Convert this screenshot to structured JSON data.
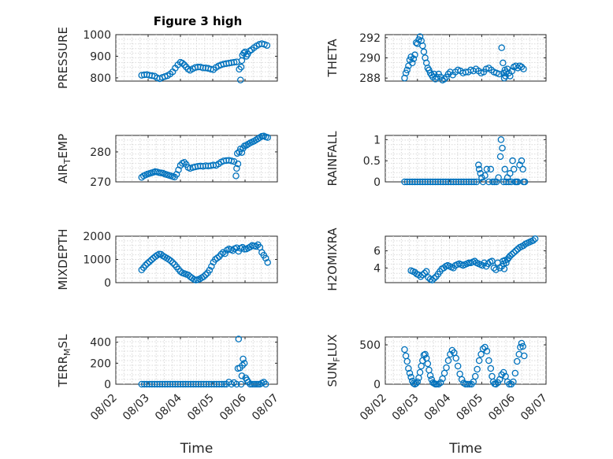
{
  "figure": {
    "title": "Figure 3 high",
    "marker_color": "#0072bd",
    "xlabel": "Time",
    "xticklabels": [
      "08/02",
      "08/03",
      "08/04",
      "08/05",
      "08/06",
      "08/07"
    ]
  },
  "chart_data": [
    {
      "type": "scatter",
      "ylabel": "PRESSURE",
      "xlim": [
        0,
        5
      ],
      "ylim": [
        785,
        1000
      ],
      "yticks": [
        800,
        900,
        1000
      ],
      "yticklabels": [
        "800",
        "900",
        "1000"
      ],
      "grid": true,
      "x": [
        0.8,
        0.88,
        0.96,
        1.04,
        1.12,
        1.2,
        1.28,
        1.36,
        1.44,
        1.52,
        1.6,
        1.68,
        1.76,
        1.84,
        1.92,
        2.0,
        2.06,
        2.12,
        2.18,
        2.24,
        2.3,
        2.38,
        2.46,
        2.54,
        2.62,
        2.7,
        2.78,
        2.86,
        2.94,
        3.02,
        3.1,
        3.18,
        3.26,
        3.34,
        3.42,
        3.5,
        3.58,
        3.66,
        3.74,
        3.82,
        3.86,
        3.88,
        3.9,
        3.92,
        3.96,
        4.0,
        4.04,
        4.08,
        4.14,
        4.2,
        4.28,
        4.36,
        4.44,
        4.52,
        4.6,
        4.68
      ],
      "y": [
        812,
        814,
        815,
        812,
        810,
        808,
        800,
        796,
        802,
        806,
        810,
        818,
        828,
        845,
        860,
        872,
        868,
        860,
        850,
        840,
        835,
        842,
        848,
        850,
        850,
        846,
        846,
        844,
        840,
        838,
        848,
        855,
        860,
        864,
        866,
        868,
        870,
        872,
        874,
        840,
        790,
        850,
        880,
        905,
        915,
        920,
        900,
        910,
        924,
        930,
        940,
        948,
        955,
        958,
        955,
        950
      ]
    },
    {
      "type": "scatter",
      "ylabel": "THETA",
      "xlim": [
        0,
        5
      ],
      "ylim": [
        287.7,
        292.3
      ],
      "yticks": [
        288,
        290,
        292
      ],
      "yticklabels": [
        "288",
        "290",
        "292"
      ],
      "grid": true,
      "x": [
        0.6,
        0.64,
        0.68,
        0.72,
        0.76,
        0.8,
        0.84,
        0.88,
        0.92,
        0.96,
        1.0,
        1.04,
        1.08,
        1.12,
        1.16,
        1.2,
        1.24,
        1.28,
        1.32,
        1.36,
        1.4,
        1.44,
        1.48,
        1.52,
        1.56,
        1.6,
        1.66,
        1.72,
        1.78,
        1.84,
        1.9,
        1.96,
        2.02,
        2.1,
        2.18,
        2.26,
        2.34,
        2.42,
        2.5,
        2.58,
        2.66,
        2.74,
        2.82,
        2.9,
        2.98,
        3.06,
        3.14,
        3.22,
        3.3,
        3.38,
        3.46,
        3.54,
        3.62,
        3.66,
        3.68,
        3.7,
        3.72,
        3.74,
        3.76,
        3.8,
        3.84,
        3.88,
        3.94,
        4.0,
        4.06,
        4.12,
        4.18,
        4.24,
        4.3
      ],
      "y": [
        288,
        288.5,
        288.8,
        289.2,
        289.8,
        290.1,
        289.5,
        289.9,
        290.3,
        291.5,
        291.4,
        291.8,
        292.1,
        291.7,
        291.2,
        290.6,
        290,
        289.5,
        289,
        288.8,
        288.5,
        288.3,
        288.1,
        288.4,
        287.9,
        288.1,
        288.4,
        288.1,
        287.8,
        287.9,
        288.1,
        288.4,
        288.6,
        288.3,
        288.6,
        288.8,
        288.7,
        288.5,
        288.6,
        288.6,
        288.8,
        288.7,
        288.9,
        288.7,
        288.5,
        288.6,
        288.9,
        289.0,
        288.8,
        288.6,
        288.5,
        288.4,
        291.0,
        289.5,
        288.5,
        288.0,
        288.8,
        288.2,
        288.6,
        288.9,
        288.5,
        288.2,
        288.7,
        289.1,
        289.2,
        289.0,
        289.2,
        289.1,
        288.9
      ]
    },
    {
      "type": "scatter",
      "ylabel": "AIR_TEMP",
      "xlim": [
        0,
        5
      ],
      "ylim": [
        270,
        285.5
      ],
      "yticks": [
        270,
        280
      ],
      "yticklabels": [
        "270",
        "280"
      ],
      "grid": true,
      "x": [
        0.8,
        0.86,
        0.92,
        0.98,
        1.04,
        1.1,
        1.16,
        1.22,
        1.28,
        1.34,
        1.4,
        1.46,
        1.52,
        1.58,
        1.64,
        1.7,
        1.76,
        1.82,
        1.88,
        1.94,
        2.0,
        2.06,
        2.12,
        2.18,
        2.24,
        2.3,
        2.38,
        2.46,
        2.54,
        2.62,
        2.7,
        2.78,
        2.86,
        2.94,
        3.02,
        3.1,
        3.18,
        3.26,
        3.34,
        3.42,
        3.5,
        3.58,
        3.66,
        3.72,
        3.74,
        3.76,
        3.78,
        3.82,
        3.86,
        3.9,
        3.94,
        3.98,
        4.04,
        4.1,
        4.16,
        4.22,
        4.28,
        4.34,
        4.4,
        4.46,
        4.52,
        4.58,
        4.64,
        4.7
      ],
      "y": [
        271.5,
        272,
        272.3,
        272.6,
        272.8,
        273,
        273.2,
        273.4,
        273.3,
        273.1,
        273,
        272.9,
        272.6,
        272.4,
        272.2,
        272,
        271.8,
        271.6,
        272.5,
        274,
        275.5,
        276.2,
        276.5,
        275.8,
        274.8,
        274.5,
        274.8,
        275,
        275.2,
        275.3,
        275.2,
        275.4,
        275.3,
        275.4,
        275.6,
        275.5,
        276,
        276.6,
        277,
        277.1,
        277.2,
        277.0,
        276.8,
        272,
        274.5,
        279.5,
        276,
        280,
        281,
        279.8,
        281.2,
        282,
        282.2,
        282.6,
        283,
        283.3,
        283.6,
        284,
        284.4,
        284.8,
        285.2,
        285.3,
        285.0,
        284.8
      ]
    },
    {
      "type": "scatter",
      "ylabel": "RAINFALL",
      "xlim": [
        0,
        5
      ],
      "ylim": [
        0,
        1.1
      ],
      "yticks": [
        0,
        0.5,
        1
      ],
      "yticklabels": [
        "0",
        "0.5",
        "1"
      ],
      "grid": true,
      "x": [
        0.6,
        0.68,
        0.76,
        0.84,
        0.92,
        1.0,
        1.08,
        1.16,
        1.24,
        1.32,
        1.4,
        1.48,
        1.56,
        1.64,
        1.72,
        1.8,
        1.88,
        1.96,
        2.04,
        2.12,
        2.2,
        2.28,
        2.36,
        2.44,
        2.52,
        2.6,
        2.68,
        2.76,
        2.84,
        2.9,
        2.92,
        2.96,
        3.0,
        3.04,
        3.1,
        3.16,
        3.22,
        3.28,
        3.34,
        3.4,
        3.46,
        3.52,
        3.58,
        3.6,
        3.64,
        3.68,
        3.72,
        3.76,
        3.8,
        3.84,
        3.88,
        3.92,
        3.96,
        4.0,
        4.04,
        4.08,
        4.12,
        4.18,
        4.24,
        4.28,
        4.3,
        4.34
      ],
      "y": [
        0,
        0,
        0,
        0,
        0,
        0,
        0,
        0,
        0,
        0,
        0,
        0,
        0,
        0,
        0,
        0,
        0,
        0,
        0,
        0,
        0,
        0,
        0,
        0,
        0,
        0,
        0,
        0,
        0,
        0.4,
        0.3,
        0.2,
        0.1,
        0,
        0.15,
        0.3,
        0,
        0.3,
        0,
        0,
        0,
        0.1,
        0.6,
        1.0,
        0.8,
        0,
        0.3,
        0,
        0.1,
        0,
        0.2,
        0,
        0.5,
        0.3,
        0,
        0,
        0,
        0.4,
        0.5,
        0.3,
        0,
        0
      ]
    },
    {
      "type": "scatter",
      "ylabel": "MIXDEPTH",
      "xlim": [
        0,
        5
      ],
      "ylim": [
        0,
        2000
      ],
      "yticks": [
        0,
        1000,
        2000
      ],
      "yticklabels": [
        "0",
        "1000",
        "2000"
      ],
      "grid": true,
      "x": [
        0.8,
        0.86,
        0.92,
        0.98,
        1.04,
        1.1,
        1.16,
        1.22,
        1.28,
        1.34,
        1.4,
        1.46,
        1.52,
        1.58,
        1.64,
        1.7,
        1.76,
        1.82,
        1.88,
        1.94,
        2.0,
        2.06,
        2.12,
        2.18,
        2.24,
        2.3,
        2.36,
        2.42,
        2.48,
        2.54,
        2.6,
        2.66,
        2.72,
        2.78,
        2.84,
        2.9,
        2.96,
        3.02,
        3.08,
        3.14,
        3.2,
        3.26,
        3.32,
        3.38,
        3.44,
        3.5,
        3.56,
        3.62,
        3.68,
        3.74,
        3.8,
        3.86,
        3.92,
        3.98,
        4.04,
        4.1,
        4.16,
        4.22,
        4.28,
        4.34,
        4.4,
        4.46,
        4.52,
        4.58,
        4.64,
        4.7
      ],
      "y": [
        550,
        650,
        750,
        830,
        900,
        980,
        1050,
        1120,
        1180,
        1230,
        1220,
        1150,
        1100,
        1050,
        1000,
        940,
        860,
        780,
        680,
        580,
        480,
        420,
        390,
        360,
        330,
        260,
        200,
        140,
        110,
        130,
        160,
        210,
        260,
        340,
        420,
        540,
        700,
        880,
        1000,
        1060,
        1120,
        1220,
        1300,
        1250,
        1400,
        1450,
        1420,
        1380,
        1460,
        1500,
        1350,
        1480,
        1520,
        1440,
        1450,
        1490,
        1540,
        1600,
        1580,
        1560,
        1630,
        1520,
        1300,
        1180,
        1050,
        870
      ]
    },
    {
      "type": "scatter",
      "ylabel": "H2OMIXRA",
      "xlim": [
        0,
        5
      ],
      "ylim": [
        2.3,
        7.7
      ],
      "yticks": [
        4,
        6
      ],
      "yticklabels": [
        "4",
        "6"
      ],
      "grid": true,
      "x": [
        0.8,
        0.86,
        0.92,
        0.98,
        1.04,
        1.1,
        1.16,
        1.22,
        1.28,
        1.34,
        1.4,
        1.46,
        1.52,
        1.58,
        1.64,
        1.7,
        1.76,
        1.82,
        1.88,
        1.94,
        2.0,
        2.06,
        2.12,
        2.18,
        2.24,
        2.3,
        2.36,
        2.42,
        2.48,
        2.54,
        2.6,
        2.66,
        2.72,
        2.78,
        2.84,
        2.9,
        2.96,
        3.02,
        3.08,
        3.14,
        3.2,
        3.26,
        3.32,
        3.38,
        3.44,
        3.5,
        3.56,
        3.62,
        3.66,
        3.68,
        3.7,
        3.72,
        3.76,
        3.8,
        3.84,
        3.88,
        3.94,
        4.0,
        4.06,
        4.12,
        4.18,
        4.24,
        4.3,
        4.36,
        4.42,
        4.48,
        4.54,
        4.6,
        4.66
      ],
      "y": [
        3.7,
        3.6,
        3.5,
        3.3,
        3.2,
        3.0,
        3.2,
        3.4,
        3.6,
        2.9,
        2.7,
        2.6,
        2.8,
        3.0,
        3.3,
        3.6,
        3.9,
        4.0,
        4.2,
        4.3,
        4.2,
        4.1,
        4.0,
        4.3,
        4.4,
        4.5,
        4.4,
        4.3,
        4.4,
        4.5,
        4.6,
        4.6,
        4.7,
        4.8,
        4.6,
        4.5,
        4.4,
        4.3,
        4.6,
        4.2,
        4.5,
        4.7,
        4.8,
        4.0,
        3.8,
        4.6,
        4.0,
        4.2,
        4.8,
        4.5,
        3.9,
        4.9,
        4.6,
        5.0,
        5.2,
        5.4,
        5.6,
        5.8,
        6.0,
        6.2,
        6.4,
        6.5,
        6.6,
        6.8,
        6.9,
        7.0,
        7.1,
        7.2,
        7.4
      ]
    },
    {
      "type": "scatter",
      "ylabel": "TERR_MSL",
      "xlim": [
        0,
        5
      ],
      "ylim": [
        0,
        450
      ],
      "yticks": [
        0,
        200,
        400
      ],
      "yticklabels": [
        "0",
        "200",
        "400"
      ],
      "grid": true,
      "x": [
        0.8,
        0.88,
        0.96,
        1.04,
        1.12,
        1.2,
        1.28,
        1.36,
        1.44,
        1.52,
        1.6,
        1.68,
        1.76,
        1.84,
        1.92,
        2.0,
        2.08,
        2.16,
        2.24,
        2.32,
        2.4,
        2.48,
        2.56,
        2.64,
        2.72,
        2.8,
        2.88,
        2.96,
        3.04,
        3.12,
        3.2,
        3.28,
        3.36,
        3.42,
        3.5,
        3.58,
        3.66,
        3.74,
        3.78,
        3.8,
        3.84,
        3.88,
        3.9,
        3.92,
        3.94,
        3.98,
        4.02,
        4.06,
        4.1,
        4.16,
        4.22,
        4.28,
        4.34,
        4.4,
        4.46,
        4.52,
        4.58,
        4.64
      ],
      "y": [
        0,
        0,
        0,
        0,
        0,
        0,
        0,
        0,
        0,
        0,
        0,
        0,
        0,
        0,
        0,
        0,
        0,
        0,
        0,
        0,
        0,
        0,
        0,
        0,
        0,
        0,
        0,
        0,
        0,
        0,
        0,
        0,
        0,
        0,
        20,
        0,
        15,
        0,
        150,
        430,
        155,
        0,
        80,
        180,
        240,
        200,
        60,
        40,
        20,
        0,
        0,
        0,
        0,
        0,
        0,
        10,
        20,
        0
      ]
    },
    {
      "type": "scatter",
      "ylabel": "SUN_FLUX",
      "xlim": [
        0,
        5
      ],
      "ylim": [
        0,
        600
      ],
      "yticks": [
        0,
        500
      ],
      "yticklabels": [
        "0",
        "500"
      ],
      "grid": true,
      "x": [
        0.6,
        0.64,
        0.68,
        0.72,
        0.76,
        0.8,
        0.84,
        0.88,
        0.92,
        0.96,
        1.0,
        1.04,
        1.08,
        1.12,
        1.16,
        1.2,
        1.24,
        1.28,
        1.32,
        1.36,
        1.4,
        1.44,
        1.48,
        1.52,
        1.56,
        1.6,
        1.66,
        1.72,
        1.78,
        1.84,
        1.9,
        1.96,
        2.02,
        2.08,
        2.14,
        2.2,
        2.26,
        2.32,
        2.38,
        2.44,
        2.5,
        2.56,
        2.62,
        2.68,
        2.74,
        2.8,
        2.86,
        2.92,
        2.98,
        3.04,
        3.1,
        3.16,
        3.22,
        3.28,
        3.32,
        3.36,
        3.4,
        3.44,
        3.5,
        3.56,
        3.62,
        3.68,
        3.74,
        3.8,
        3.86,
        3.92,
        3.98,
        4.04,
        4.1,
        4.16,
        4.2,
        4.24,
        4.28,
        4.32
      ],
      "y": [
        440,
        360,
        290,
        200,
        140,
        90,
        40,
        10,
        0,
        10,
        30,
        80,
        150,
        230,
        300,
        370,
        380,
        330,
        260,
        180,
        110,
        60,
        20,
        10,
        0,
        0,
        0,
        20,
        70,
        140,
        210,
        300,
        380,
        430,
        400,
        330,
        230,
        130,
        60,
        15,
        0,
        0,
        0,
        0,
        30,
        100,
        190,
        300,
        380,
        450,
        470,
        420,
        300,
        200,
        100,
        30,
        5,
        0,
        20,
        60,
        120,
        150,
        100,
        30,
        0,
        0,
        30,
        140,
        290,
        380,
        470,
        520,
        480,
        360
      ]
    }
  ]
}
